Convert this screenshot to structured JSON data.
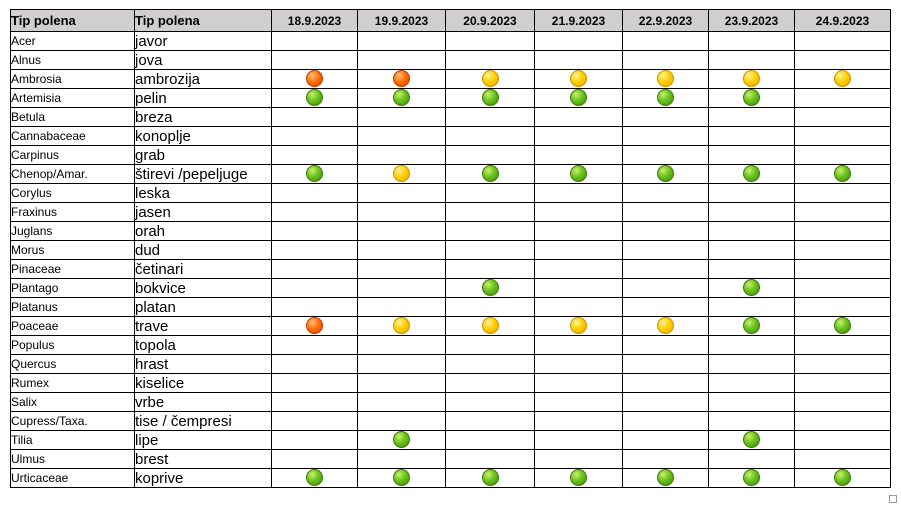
{
  "headers": {
    "latin": "Tip polena",
    "local": "Tip polena",
    "dates": [
      "18.9.2023",
      "19.9.2023",
      "20.9.2023",
      "21.9.2023",
      "22.9.2023",
      "23.9.2023",
      "24.9.2023"
    ]
  },
  "level_colors": {
    "green": "#6ac21c",
    "yellow": "#ffd000",
    "orange": "#ff6a00"
  },
  "rows": [
    {
      "latin": "Acer",
      "local": "javor",
      "levels": [
        "",
        "",
        "",
        "",
        "",
        "",
        ""
      ]
    },
    {
      "latin": "Alnus",
      "local": "jova",
      "levels": [
        "",
        "",
        "",
        "",
        "",
        "",
        ""
      ]
    },
    {
      "latin": "Ambrosia",
      "local": "ambrozija",
      "levels": [
        "orange",
        "orange",
        "yellow",
        "yellow",
        "yellow",
        "yellow",
        "yellow"
      ]
    },
    {
      "latin": "Artemisia",
      "local": "pelin",
      "levels": [
        "green",
        "green",
        "green",
        "green",
        "green",
        "green",
        ""
      ]
    },
    {
      "latin": "Betula",
      "local": "breza",
      "levels": [
        "",
        "",
        "",
        "",
        "",
        "",
        ""
      ]
    },
    {
      "latin": "Cannabaceae",
      "local": "konoplje",
      "levels": [
        "",
        "",
        "",
        "",
        "",
        "",
        ""
      ]
    },
    {
      "latin": "Carpinus",
      "local": "grab",
      "levels": [
        "",
        "",
        "",
        "",
        "",
        "",
        ""
      ]
    },
    {
      "latin": "Chenop/Amar.",
      "local": "štirevi /pepeljuge",
      "levels": [
        "green",
        "yellow",
        "green",
        "green",
        "green",
        "green",
        "green"
      ]
    },
    {
      "latin": "Corylus",
      "local": "leska",
      "levels": [
        "",
        "",
        "",
        "",
        "",
        "",
        ""
      ]
    },
    {
      "latin": "Fraxinus",
      "local": "jasen",
      "levels": [
        "",
        "",
        "",
        "",
        "",
        "",
        ""
      ]
    },
    {
      "latin": "Juglans",
      "local": "orah",
      "levels": [
        "",
        "",
        "",
        "",
        "",
        "",
        ""
      ]
    },
    {
      "latin": "Morus",
      "local": "dud",
      "levels": [
        "",
        "",
        "",
        "",
        "",
        "",
        ""
      ]
    },
    {
      "latin": "Pinaceae",
      "local": "četinari",
      "levels": [
        "",
        "",
        "",
        "",
        "",
        "",
        ""
      ]
    },
    {
      "latin": "Plantago",
      "local": "bokvice",
      "levels": [
        "",
        "",
        "green",
        "",
        "",
        "green",
        ""
      ]
    },
    {
      "latin": "Platanus",
      "local": "platan",
      "levels": [
        "",
        "",
        "",
        "",
        "",
        "",
        ""
      ]
    },
    {
      "latin": "Poaceae",
      "local": "trave",
      "levels": [
        "orange",
        "yellow",
        "yellow",
        "yellow",
        "yellow",
        "green",
        "green"
      ]
    },
    {
      "latin": "Populus",
      "local": "topola",
      "levels": [
        "",
        "",
        "",
        "",
        "",
        "",
        ""
      ]
    },
    {
      "latin": "Quercus",
      "local": "hrast",
      "levels": [
        "",
        "",
        "",
        "",
        "",
        "",
        ""
      ]
    },
    {
      "latin": "Rumex",
      "local": "kiselice",
      "levels": [
        "",
        "",
        "",
        "",
        "",
        "",
        ""
      ]
    },
    {
      "latin": "Salix",
      "local": "vrbe",
      "levels": [
        "",
        "",
        "",
        "",
        "",
        "",
        ""
      ]
    },
    {
      "latin": "Cupress/Taxa.",
      "local": "tise / čempresi",
      "levels": [
        "",
        "",
        "",
        "",
        "",
        "",
        ""
      ]
    },
    {
      "latin": "Tilia",
      "local": "lipe",
      "levels": [
        "",
        "green",
        "",
        "",
        "",
        "green",
        ""
      ]
    },
    {
      "latin": "Ulmus",
      "local": "brest",
      "levels": [
        "",
        "",
        "",
        "",
        "",
        "",
        ""
      ]
    },
    {
      "latin": "Urticaceae",
      "local": "koprive",
      "levels": [
        "green",
        "green",
        "green",
        "green",
        "green",
        "green",
        "green"
      ]
    }
  ]
}
